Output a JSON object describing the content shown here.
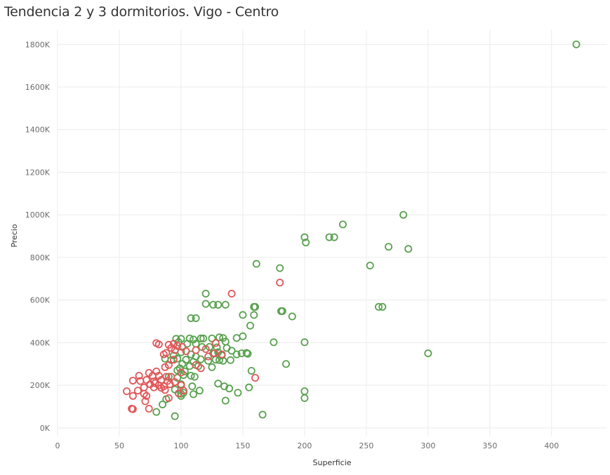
{
  "chart_data": {
    "type": "scatter",
    "title": "Tendencia 2 y 3 dormitorios. Vigo - Centro",
    "xlabel": "Superficie",
    "ylabel": "Precio",
    "xlim": [
      0,
      445
    ],
    "ylim": [
      -40000,
      1870000
    ],
    "x_ticks": [
      0,
      50,
      100,
      150,
      200,
      250,
      300,
      350,
      400
    ],
    "x_tick_labels": [
      "0",
      "50",
      "100",
      "150",
      "200",
      "250",
      "300",
      "350",
      "400"
    ],
    "y_ticks": [
      0,
      200000,
      400000,
      600000,
      800000,
      1000000,
      1200000,
      1400000,
      1600000,
      1800000
    ],
    "y_tick_labels": [
      "0K",
      "200K",
      "400K",
      "600K",
      "800K",
      "1000K",
      "1200K",
      "1400K",
      "1600K",
      "1800K"
    ],
    "grid": true,
    "legend": "none",
    "colors": {
      "green": "#59a14f",
      "red": "#e15759"
    },
    "series": [
      {
        "color": "#59a14f",
        "points": [
          [
            420,
            1800000
          ],
          [
            280,
            1000000
          ],
          [
            231,
            955000
          ],
          [
            200,
            895000
          ],
          [
            220,
            895000
          ],
          [
            224,
            895000
          ],
          [
            201,
            870000
          ],
          [
            268,
            850000
          ],
          [
            284,
            840000
          ],
          [
            161,
            770000
          ],
          [
            253,
            762000
          ],
          [
            180,
            750000
          ],
          [
            120,
            630000
          ],
          [
            260,
            568000
          ],
          [
            263,
            568000
          ],
          [
            120,
            582000
          ],
          [
            126,
            578000
          ],
          [
            130,
            578000
          ],
          [
            136,
            578000
          ],
          [
            159,
            568000
          ],
          [
            160,
            568000
          ],
          [
            181,
            548000
          ],
          [
            182,
            548000
          ],
          [
            150,
            530000
          ],
          [
            159,
            530000
          ],
          [
            190,
            523000
          ],
          [
            108,
            515000
          ],
          [
            112,
            515000
          ],
          [
            156,
            480000
          ],
          [
            150,
            430000
          ],
          [
            145,
            422000
          ],
          [
            131,
            425000
          ],
          [
            134,
            422000
          ],
          [
            116,
            420000
          ],
          [
            118,
            420000
          ],
          [
            125,
            420000
          ],
          [
            107,
            420000
          ],
          [
            110,
            415000
          ],
          [
            96,
            418000
          ],
          [
            100,
            418000
          ],
          [
            175,
            402000
          ],
          [
            200,
            402000
          ],
          [
            136,
            405000
          ],
          [
            98,
            402000
          ],
          [
            105,
            395000
          ],
          [
            112,
            395000
          ],
          [
            117,
            380000
          ],
          [
            123,
            380000
          ],
          [
            129,
            378000
          ],
          [
            137,
            375000
          ],
          [
            141,
            362000
          ],
          [
            145,
            345000
          ],
          [
            149,
            350000
          ],
          [
            153,
            352000
          ],
          [
            154,
            348000
          ],
          [
            130,
            355000
          ],
          [
            126,
            350000
          ],
          [
            133,
            340000
          ],
          [
            100,
            355000
          ],
          [
            108,
            345000
          ],
          [
            112,
            335000
          ],
          [
            94,
            340000
          ],
          [
            97,
            325000
          ],
          [
            87,
            325000
          ],
          [
            92,
            318000
          ],
          [
            104,
            320000
          ],
          [
            110,
            310000
          ],
          [
            116,
            322000
          ],
          [
            122,
            315000
          ],
          [
            128,
            320000
          ],
          [
            131,
            318000
          ],
          [
            134,
            315000
          ],
          [
            140,
            318000
          ],
          [
            300,
            350000
          ],
          [
            185,
            300000
          ],
          [
            101,
            300000
          ],
          [
            107,
            290000
          ],
          [
            114,
            290000
          ],
          [
            125,
            285000
          ],
          [
            99,
            280000
          ],
          [
            97,
            270000
          ],
          [
            103,
            265000
          ],
          [
            157,
            268000
          ],
          [
            102,
            248000
          ],
          [
            108,
            245000
          ],
          [
            97,
            235000
          ],
          [
            111,
            240000
          ],
          [
            90,
            240000
          ],
          [
            100,
            205000
          ],
          [
            130,
            208000
          ],
          [
            135,
            195000
          ],
          [
            155,
            190000
          ],
          [
            139,
            185000
          ],
          [
            95,
            180000
          ],
          [
            109,
            195000
          ],
          [
            200,
            172000
          ],
          [
            115,
            175000
          ],
          [
            146,
            165000
          ],
          [
            100,
            160000
          ],
          [
            102,
            165000
          ],
          [
            110,
            158000
          ],
          [
            100,
            150000
          ],
          [
            200,
            140000
          ],
          [
            88,
            135000
          ],
          [
            136,
            128000
          ],
          [
            85,
            110000
          ],
          [
            80,
            75000
          ],
          [
            166,
            62000
          ],
          [
            95,
            55000
          ]
        ]
      },
      {
        "color": "#e15759",
        "points": [
          [
            141,
            630000
          ],
          [
            180,
            682000
          ],
          [
            80,
            398000
          ],
          [
            82,
            392000
          ],
          [
            90,
            390000
          ],
          [
            94,
            395000
          ],
          [
            97,
            385000
          ],
          [
            92,
            375000
          ],
          [
            101,
            380000
          ],
          [
            95,
            365000
          ],
          [
            88,
            352000
          ],
          [
            86,
            345000
          ],
          [
            104,
            360000
          ],
          [
            112,
            365000
          ],
          [
            120,
            370000
          ],
          [
            128,
            398000
          ],
          [
            127,
            350000
          ],
          [
            133,
            345000
          ],
          [
            94,
            320000
          ],
          [
            90,
            295000
          ],
          [
            87,
            285000
          ],
          [
            112,
            295000
          ],
          [
            116,
            280000
          ],
          [
            122,
            335000
          ],
          [
            100,
            260000
          ],
          [
            80,
            265000
          ],
          [
            74,
            258000
          ],
          [
            66,
            245000
          ],
          [
            77,
            245000
          ],
          [
            82,
            245000
          ],
          [
            88,
            240000
          ],
          [
            92,
            240000
          ],
          [
            61,
            222000
          ],
          [
            67,
            220000
          ],
          [
            72,
            225000
          ],
          [
            78,
            218000
          ],
          [
            84,
            225000
          ],
          [
            89,
            220000
          ],
          [
            95,
            215000
          ],
          [
            75,
            205000
          ],
          [
            79,
            210000
          ],
          [
            82,
            200000
          ],
          [
            86,
            195000
          ],
          [
            91,
            205000
          ],
          [
            100,
            200000
          ],
          [
            70,
            190000
          ],
          [
            78,
            190000
          ],
          [
            84,
            188000
          ],
          [
            87,
            178000
          ],
          [
            102,
            175000
          ],
          [
            56,
            172000
          ],
          [
            65,
            175000
          ],
          [
            70,
            160000
          ],
          [
            61,
            150000
          ],
          [
            72,
            150000
          ],
          [
            98,
            162000
          ],
          [
            90,
            140000
          ],
          [
            160,
            235000
          ],
          [
            71,
            125000
          ],
          [
            60,
            90000
          ],
          [
            61,
            88000
          ],
          [
            74,
            90000
          ]
        ]
      }
    ]
  }
}
